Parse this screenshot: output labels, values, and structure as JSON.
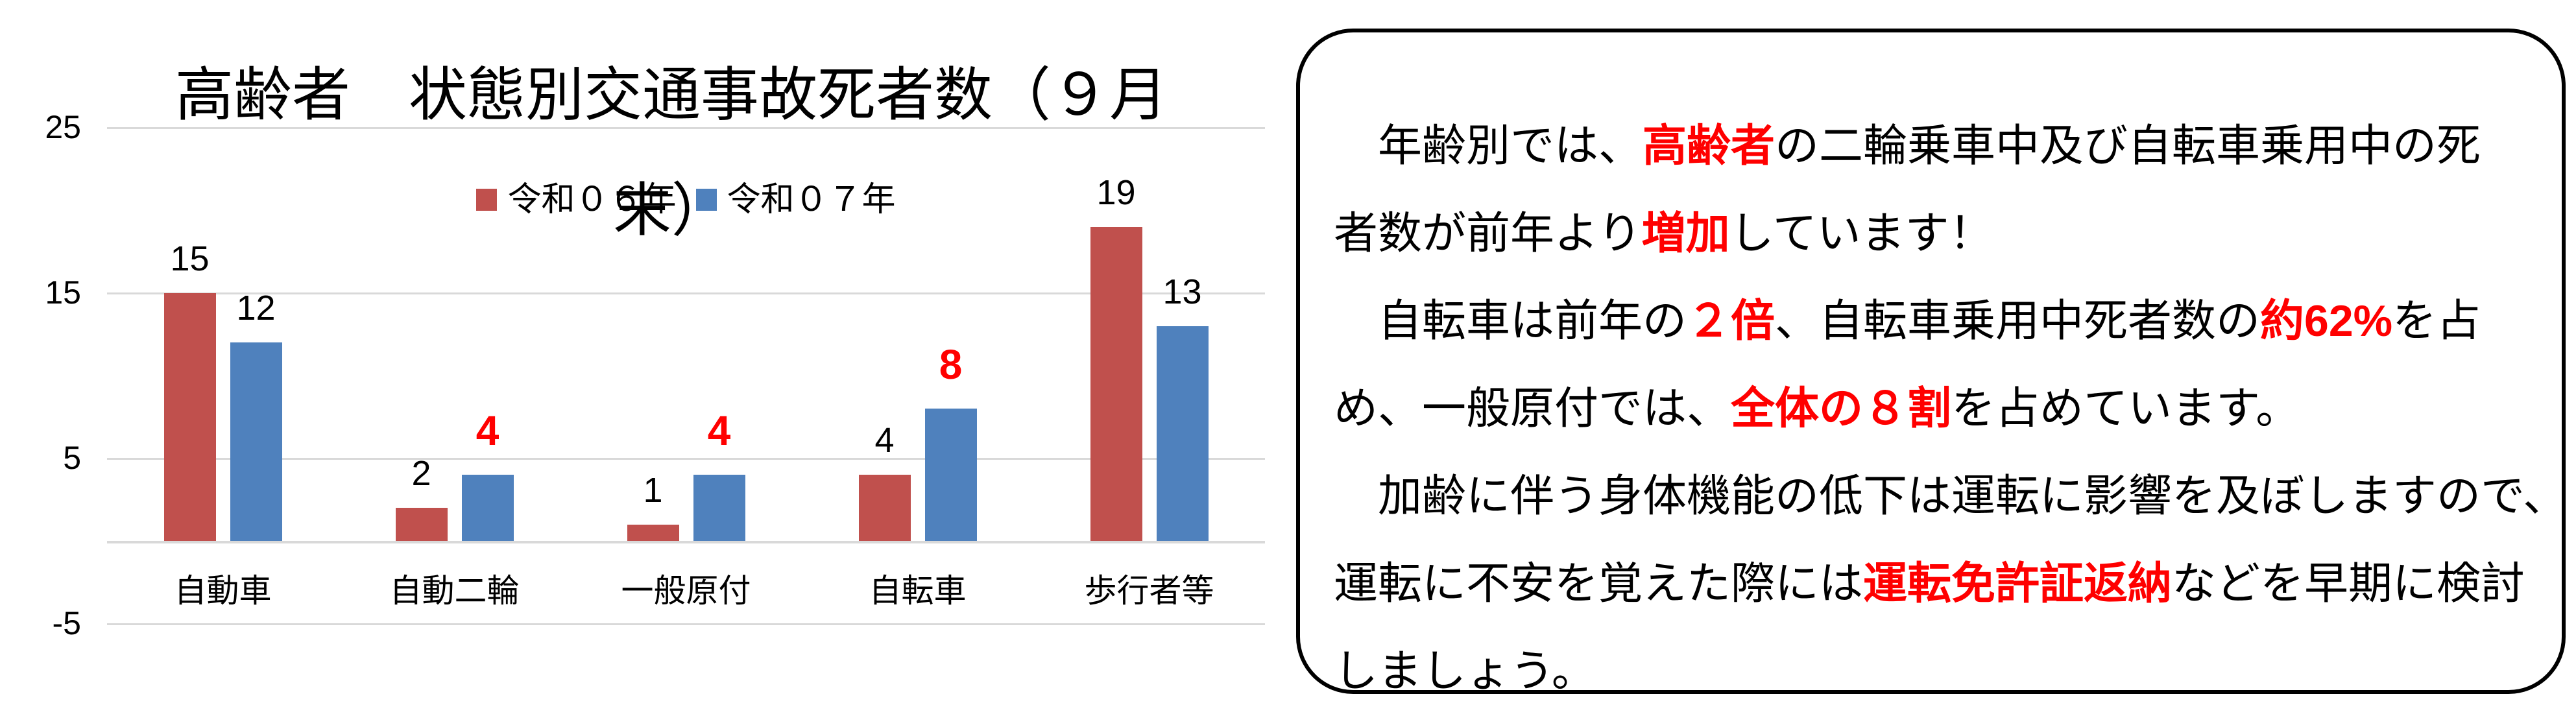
{
  "chart_data": {
    "type": "bar",
    "title": "高齢者　状態別交通事故死者数（９月末）",
    "title_lines": [
      "高齢者　状態別交通事故死者数（９月",
      "末）"
    ],
    "categories": [
      "自動車",
      "自動二輪",
      "一般原付",
      "自転車",
      "歩行者等"
    ],
    "series": [
      {
        "name": "令和０６年",
        "color": "#C0504D",
        "values": [
          15,
          2,
          1,
          4,
          19
        ],
        "label_highlight": [
          false,
          false,
          false,
          false,
          false
        ]
      },
      {
        "name": "令和０７年",
        "color": "#4F81BD",
        "values": [
          12,
          4,
          4,
          8,
          13
        ],
        "label_highlight": [
          false,
          true,
          true,
          true,
          false
        ]
      }
    ],
    "ylim": [
      -5,
      25
    ],
    "yticks": [
      25,
      15,
      5,
      -5
    ],
    "gridlines": [
      25,
      15,
      5,
      0,
      -5
    ],
    "grid": true,
    "legend_position": "top-center",
    "data_labels": true,
    "highlight_color": "#FF0000",
    "gridline_color": "#D9D9D9",
    "xlabel": "",
    "ylabel": ""
  },
  "infobox": {
    "border_color": "#000000",
    "accent_color": "#FF0000",
    "lines": [
      [
        {
          "t": "　年齢別では、"
        },
        {
          "t": "高齢者",
          "red": true
        },
        {
          "t": "の二輪乗車中及び自転車乗用中の死"
        }
      ],
      [
        {
          "t": "者数が前年より"
        },
        {
          "t": "増加",
          "red": true
        },
        {
          "t": "しています！"
        }
      ],
      [
        {
          "t": "　自転車は前年の"
        },
        {
          "t": "２倍",
          "red": true
        },
        {
          "t": "、自転車乗用中死者数の"
        },
        {
          "t": "約62%",
          "red": true
        },
        {
          "t": "を占"
        }
      ],
      [
        {
          "t": "め、一般原付では、"
        },
        {
          "t": "全体の８割",
          "red": true
        },
        {
          "t": "を占めています。"
        }
      ],
      [
        {
          "t": "　加齢に伴う身体機能の低下は運転に影響を及ぼしますので、"
        }
      ],
      [
        {
          "t": "運転に不安を覚えた際には"
        },
        {
          "t": "運転免許証返納",
          "red": true
        },
        {
          "t": "などを早期に検討"
        }
      ],
      [
        {
          "t": "しましょう。"
        }
      ]
    ]
  }
}
